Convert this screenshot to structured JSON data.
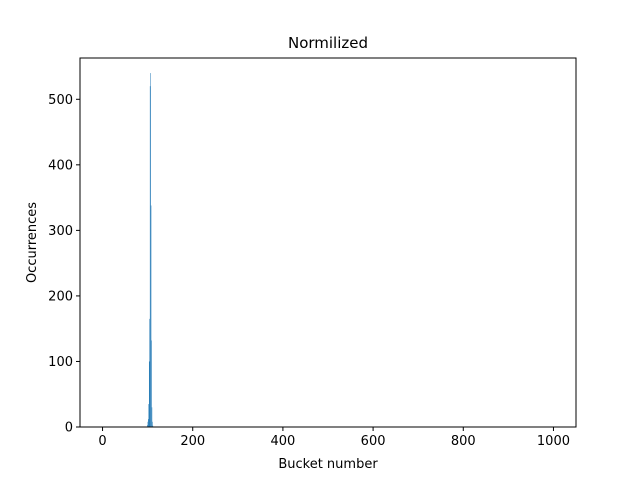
{
  "chart_data": {
    "type": "bar",
    "title": "Normilized",
    "xlabel": "Bucket number",
    "ylabel": "Occurrences",
    "xlim": [
      -50,
      1050
    ],
    "ylim": [
      0,
      563
    ],
    "x_ticks": [
      0,
      200,
      400,
      600,
      800,
      1000
    ],
    "y_ticks": [
      0,
      100,
      200,
      300,
      400,
      500
    ],
    "bar_color": "#1f77b4",
    "grid": false,
    "bucket_width": 1,
    "x": [
      99,
      100,
      101,
      102,
      103,
      104,
      105,
      106,
      107,
      108,
      109,
      110,
      111
    ],
    "values": [
      3,
      8,
      12,
      35,
      100,
      165,
      520,
      540,
      338,
      132,
      30,
      8,
      2
    ]
  }
}
